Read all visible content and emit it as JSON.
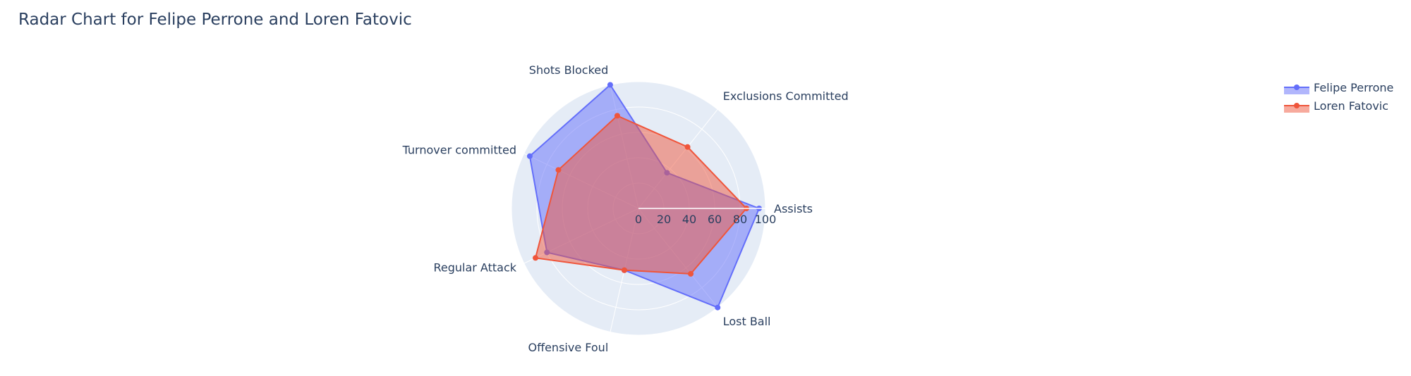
{
  "chart_data": {
    "type": "radar",
    "title": "Radar Chart for Felipe Perrone and Loren Fatovic",
    "categories": [
      "Assists",
      "Exclusions Committed",
      "Shots Blocked",
      "Turnover committed",
      "Regular Attack",
      "Offensive Foul",
      "Lost Ball"
    ],
    "radial_ticks": [
      "0",
      "20",
      "40",
      "60",
      "80",
      "100"
    ],
    "radial_range": [
      0,
      100
    ],
    "series": [
      {
        "name": "Felipe Perrone",
        "color": "#636efa",
        "values": [
          95,
          36,
          100,
          95,
          80,
          50,
          100
        ]
      },
      {
        "name": "Loren Fatovic",
        "color": "#ef553b",
        "values": [
          85,
          62,
          75,
          70,
          90,
          50,
          66
        ]
      }
    ],
    "legend_position": "top-right",
    "grid": true
  }
}
